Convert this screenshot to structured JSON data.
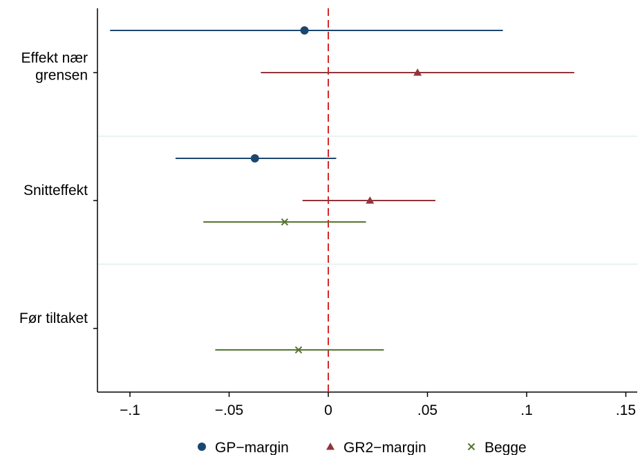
{
  "chart_data": {
    "type": "coefficient-plot",
    "orientation": "horizontal",
    "xlim": [
      -0.115,
      0.155
    ],
    "x_ticks": [
      {
        "value": -0.1,
        "label": "−.1"
      },
      {
        "value": -0.05,
        "label": "−.05"
      },
      {
        "value": 0,
        "label": "0"
      },
      {
        "value": 0.05,
        "label": ".05"
      },
      {
        "value": 0.1,
        "label": ".1"
      },
      {
        "value": 0.15,
        "label": ".15"
      }
    ],
    "reference_line": {
      "x": 0,
      "style": "dashed",
      "color": "#d62728"
    },
    "groups": [
      {
        "label_lines": [
          "Effekt nær",
          "grensen"
        ]
      },
      {
        "label_lines": [
          "Snitteffekt"
        ]
      },
      {
        "label_lines": [
          "Før tiltaket"
        ]
      }
    ],
    "series": [
      {
        "name": "GP−margin",
        "marker": "circle",
        "color": "#1a476f",
        "points": [
          {
            "group": 0,
            "estimate": -0.012,
            "ci_low": -0.11,
            "ci_high": 0.088
          },
          {
            "group": 1,
            "estimate": -0.037,
            "ci_low": -0.077,
            "ci_high": 0.004
          }
        ]
      },
      {
        "name": "GR2−margin",
        "marker": "triangle",
        "color": "#90353b",
        "points": [
          {
            "group": 0,
            "estimate": 0.045,
            "ci_low": -0.034,
            "ci_high": 0.124
          },
          {
            "group": 1,
            "estimate": 0.021,
            "ci_low": -0.013,
            "ci_high": 0.054
          }
        ]
      },
      {
        "name": "Begge",
        "marker": "x",
        "color": "#55752f",
        "points": [
          {
            "group": 1,
            "estimate": -0.022,
            "ci_low": -0.063,
            "ci_high": 0.019
          },
          {
            "group": 2,
            "estimate": -0.015,
            "ci_low": -0.057,
            "ci_high": 0.028
          }
        ]
      }
    ],
    "legend": {
      "position": "bottom",
      "orientation": "horizontal"
    },
    "grid": {
      "horizontal_separators": true,
      "color": "#eaf2f3"
    }
  }
}
